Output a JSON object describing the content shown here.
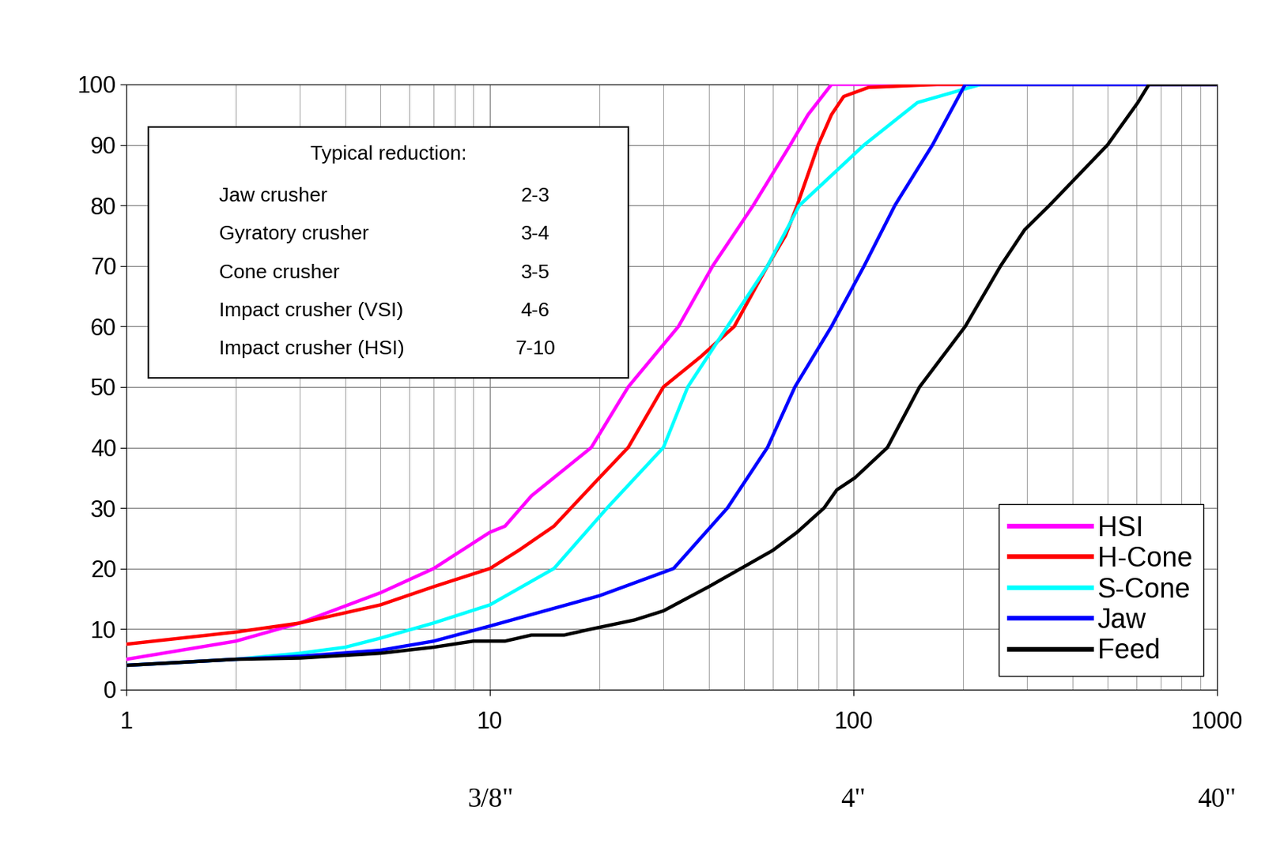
{
  "chart_data": {
    "type": "line",
    "log": "x",
    "grid": true,
    "legend": "lower right",
    "xlim": [
      1,
      1000
    ],
    "xticks": [
      1,
      10,
      100,
      1000
    ],
    "ylim": [
      0,
      100
    ],
    "yticks": [
      0,
      10,
      20,
      30,
      40,
      50,
      60,
      70,
      80,
      90,
      100
    ],
    "series": [
      {
        "name": "HSI",
        "color": "#ff00ff",
        "x": [
          1,
          2,
          3,
          5,
          7,
          10,
          11,
          13,
          19,
          24,
          33,
          41,
          53,
          67,
          75,
          87,
          1000
        ],
        "values": [
          5,
          8,
          11,
          16,
          20,
          26,
          27,
          32,
          40,
          50,
          60,
          70,
          80,
          90,
          95,
          100,
          100
        ]
      },
      {
        "name": "H-Cone",
        "color": "#ff0000",
        "x": [
          1,
          2,
          3,
          5,
          7,
          10,
          12,
          15,
          20,
          24,
          30,
          38,
          47,
          58,
          65,
          70,
          80,
          87,
          94,
          110,
          170,
          1000
        ],
        "values": [
          7.5,
          9.5,
          11,
          14,
          17,
          20,
          23,
          27,
          35,
          40,
          50,
          55,
          60,
          70,
          75,
          80,
          90,
          95,
          98,
          99.5,
          100,
          100
        ]
      },
      {
        "name": "S-Cone",
        "color": "#00ffff",
        "x": [
          1,
          2,
          3,
          4,
          5,
          7,
          10,
          15,
          21,
          30,
          35,
          45,
          58,
          71,
          107,
          150,
          224,
          1000
        ],
        "values": [
          4,
          5,
          6,
          7,
          8.5,
          11,
          14,
          20,
          30,
          40,
          50,
          60,
          70,
          80,
          90,
          97,
          100,
          100
        ]
      },
      {
        "name": "Jaw",
        "color": "#0000ff",
        "x": [
          1,
          2,
          3,
          5,
          7,
          10,
          20,
          32,
          45,
          58,
          69,
          87,
          107,
          130,
          165,
          203,
          1000
        ],
        "values": [
          4,
          5,
          5.5,
          6.5,
          8,
          10.5,
          15.5,
          20,
          30,
          40,
          50,
          60,
          70,
          80,
          90,
          100,
          100
        ]
      },
      {
        "name": "Feed",
        "color": "#000000",
        "x": [
          1,
          2,
          3,
          5,
          7,
          9,
          11,
          13,
          16,
          19,
          25,
          30,
          40,
          49,
          60,
          70,
          83,
          90,
          101,
          124,
          152,
          203,
          254,
          296,
          346,
          500,
          606,
          650,
          1000
        ],
        "values": [
          4,
          5,
          5.2,
          6,
          7,
          8,
          8,
          9,
          9,
          10,
          11.5,
          13,
          17,
          20,
          23,
          26,
          30,
          33,
          35,
          40,
          50,
          60,
          70,
          76,
          80,
          90,
          97,
          100,
          100
        ]
      }
    ],
    "annotations": [
      {
        "x": 10,
        "text": "3/8\""
      },
      {
        "x": 100,
        "text": "4\""
      },
      {
        "x": 1000,
        "text": "40\""
      }
    ],
    "table": {
      "title": "Typical reduction:",
      "rows": [
        [
          "Jaw crusher",
          "2-3"
        ],
        [
          "Gyratory crusher",
          "3-4"
        ],
        [
          "Cone crusher",
          "3-5"
        ],
        [
          "Impact crusher (VSI)",
          "4-6"
        ],
        [
          "Impact crusher (HSI)",
          "7-10"
        ]
      ]
    }
  }
}
